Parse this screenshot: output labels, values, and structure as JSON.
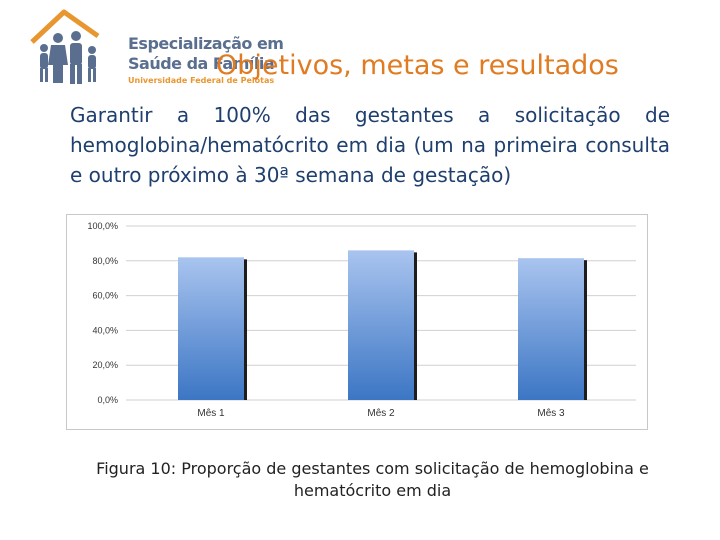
{
  "logo": {
    "line1": "Especialização em",
    "line2": "Saúde da Família",
    "line3": "Universidade Federal de Pelotas"
  },
  "title": "Objetivos, metas e resultados",
  "body_text": "Garantir a 100% das gestantes a solicitação de hemoglobina/hematócrito em dia (um na primeira consulta e outro próximo à 30ª semana de gestação)",
  "caption": "Figura 10: Proporção de gestantes com solicitação de hemoglobina e hematócrito em dia",
  "colors": {
    "title": "#e07b22",
    "body": "#1f3f6e",
    "bar_top": "#a9c4ef",
    "bar_bottom": "#3c76c4"
  },
  "chart_data": {
    "type": "bar",
    "categories": [
      "Mês 1",
      "Mês 2",
      "Mês 3"
    ],
    "values": [
      82.0,
      86.0,
      81.5
    ],
    "y_ticks": [
      "0,0%",
      "20,0%",
      "40,0%",
      "60,0%",
      "80,0%",
      "100,0%"
    ],
    "ylim": [
      0,
      100
    ],
    "grid": true,
    "legend": "none"
  }
}
